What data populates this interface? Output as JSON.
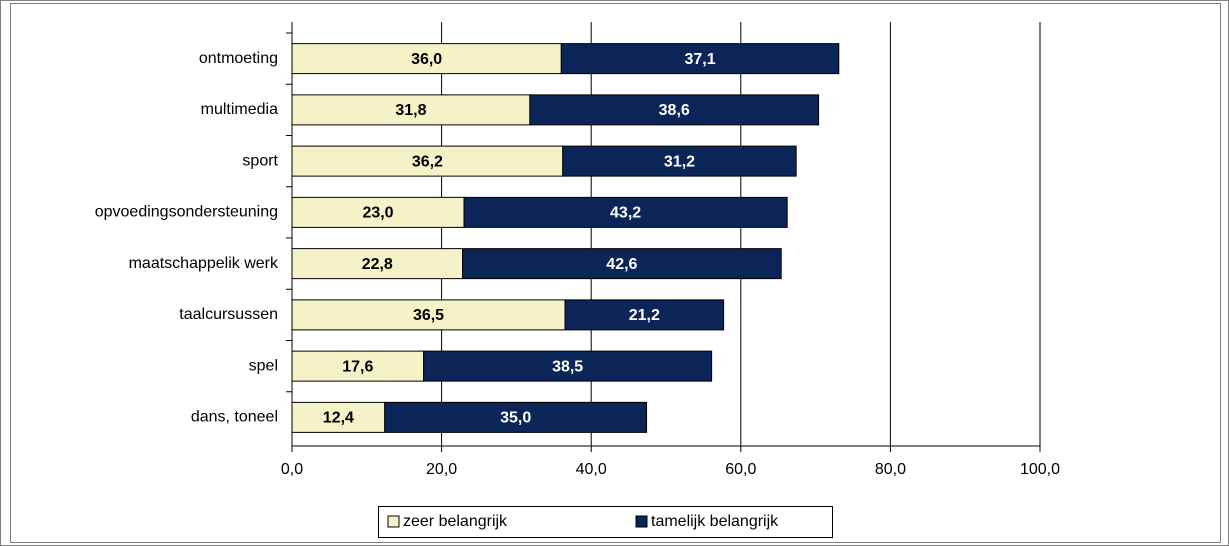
{
  "chart_data": {
    "type": "stacked_bar_horizontal",
    "categories": [
      "ontmoeting",
      "multimedia",
      "sport",
      "opvoedingsondersteuning",
      "maatschappelik werk",
      "taalcursussen",
      "spel",
      "dans, toneel"
    ],
    "series": [
      {
        "name": "zeer belangrijk",
        "color": "#f5f2c8",
        "values": [
          36.0,
          31.8,
          36.2,
          23.0,
          22.8,
          36.5,
          17.6,
          12.4
        ],
        "value_labels": [
          "36,0",
          "31,8",
          "36,2",
          "23,0",
          "22,8",
          "36,5",
          "17,6",
          "12,4"
        ]
      },
      {
        "name": "tamelijk belangrijk",
        "color": "#0c2558",
        "values": [
          37.1,
          38.6,
          31.2,
          43.2,
          42.6,
          21.2,
          38.5,
          35.0
        ],
        "value_labels": [
          "37,1",
          "38,6",
          "31,2",
          "43,2",
          "42,6",
          "21,2",
          "38,5",
          "35,0"
        ]
      }
    ],
    "xlim": [
      0,
      100
    ],
    "xticks": [
      {
        "value": 0,
        "label": "0,0"
      },
      {
        "value": 20,
        "label": "20,0"
      },
      {
        "value": 40,
        "label": "40,0"
      },
      {
        "value": 60,
        "label": "60,0"
      },
      {
        "value": 80,
        "label": "80,0"
      },
      {
        "value": 100,
        "label": "100,0"
      }
    ],
    "grid": true,
    "legend": "bottom"
  }
}
